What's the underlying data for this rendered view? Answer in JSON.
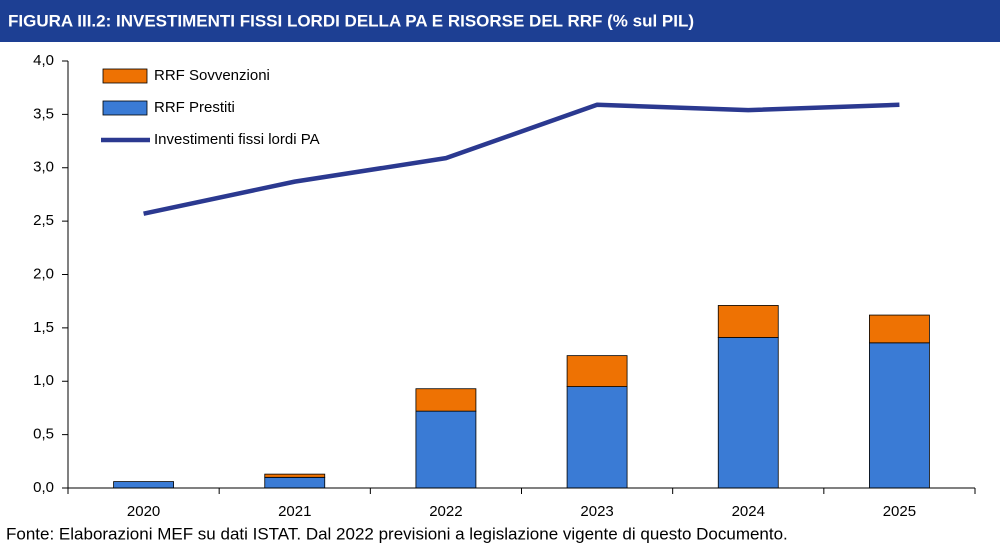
{
  "chart_data": {
    "type": "bar-line",
    "title": "FIGURA III.2: INVESTIMENTI FISSI LORDI DELLA PA E RISORSE DEL RRF (% sul PIL)",
    "source": "Fonte: Elaborazioni MEF su dati ISTAT. Dal 2022 previsioni a legislazione vigente di questo Documento.",
    "categories": [
      "2020",
      "2021",
      "2022",
      "2023",
      "2024",
      "2025"
    ],
    "series": [
      {
        "name": "RRF Prestiti",
        "type": "bar",
        "color": "#3a7bd5",
        "values": [
          0.06,
          0.1,
          0.72,
          0.95,
          1.41,
          1.36
        ]
      },
      {
        "name": "RRF Sovvenzioni",
        "type": "bar",
        "color": "#ee7203",
        "values": [
          0,
          0.03,
          0.21,
          0.29,
          0.3,
          0.26
        ]
      },
      {
        "name": "Investimenti fissi lordi PA",
        "type": "line",
        "color": "#2b3990",
        "values": [
          2.57,
          2.87,
          3.09,
          3.59,
          3.54,
          3.59
        ]
      }
    ],
    "stacked": true,
    "ylim": [
      0,
      4
    ],
    "yticks": [
      {
        "value": 0,
        "label": "0,0"
      },
      {
        "value": 0.5,
        "label": "0,5"
      },
      {
        "value": 1,
        "label": "1,0"
      },
      {
        "value": 1.5,
        "label": "1,5"
      },
      {
        "value": 2,
        "label": "2,0"
      },
      {
        "value": 2.5,
        "label": "2,5"
      },
      {
        "value": 3,
        "label": "3,0"
      },
      {
        "value": 3.5,
        "label": "3,5"
      },
      {
        "value": 4,
        "label": "4,0"
      }
    ],
    "grid": false,
    "legend": "top-left"
  }
}
